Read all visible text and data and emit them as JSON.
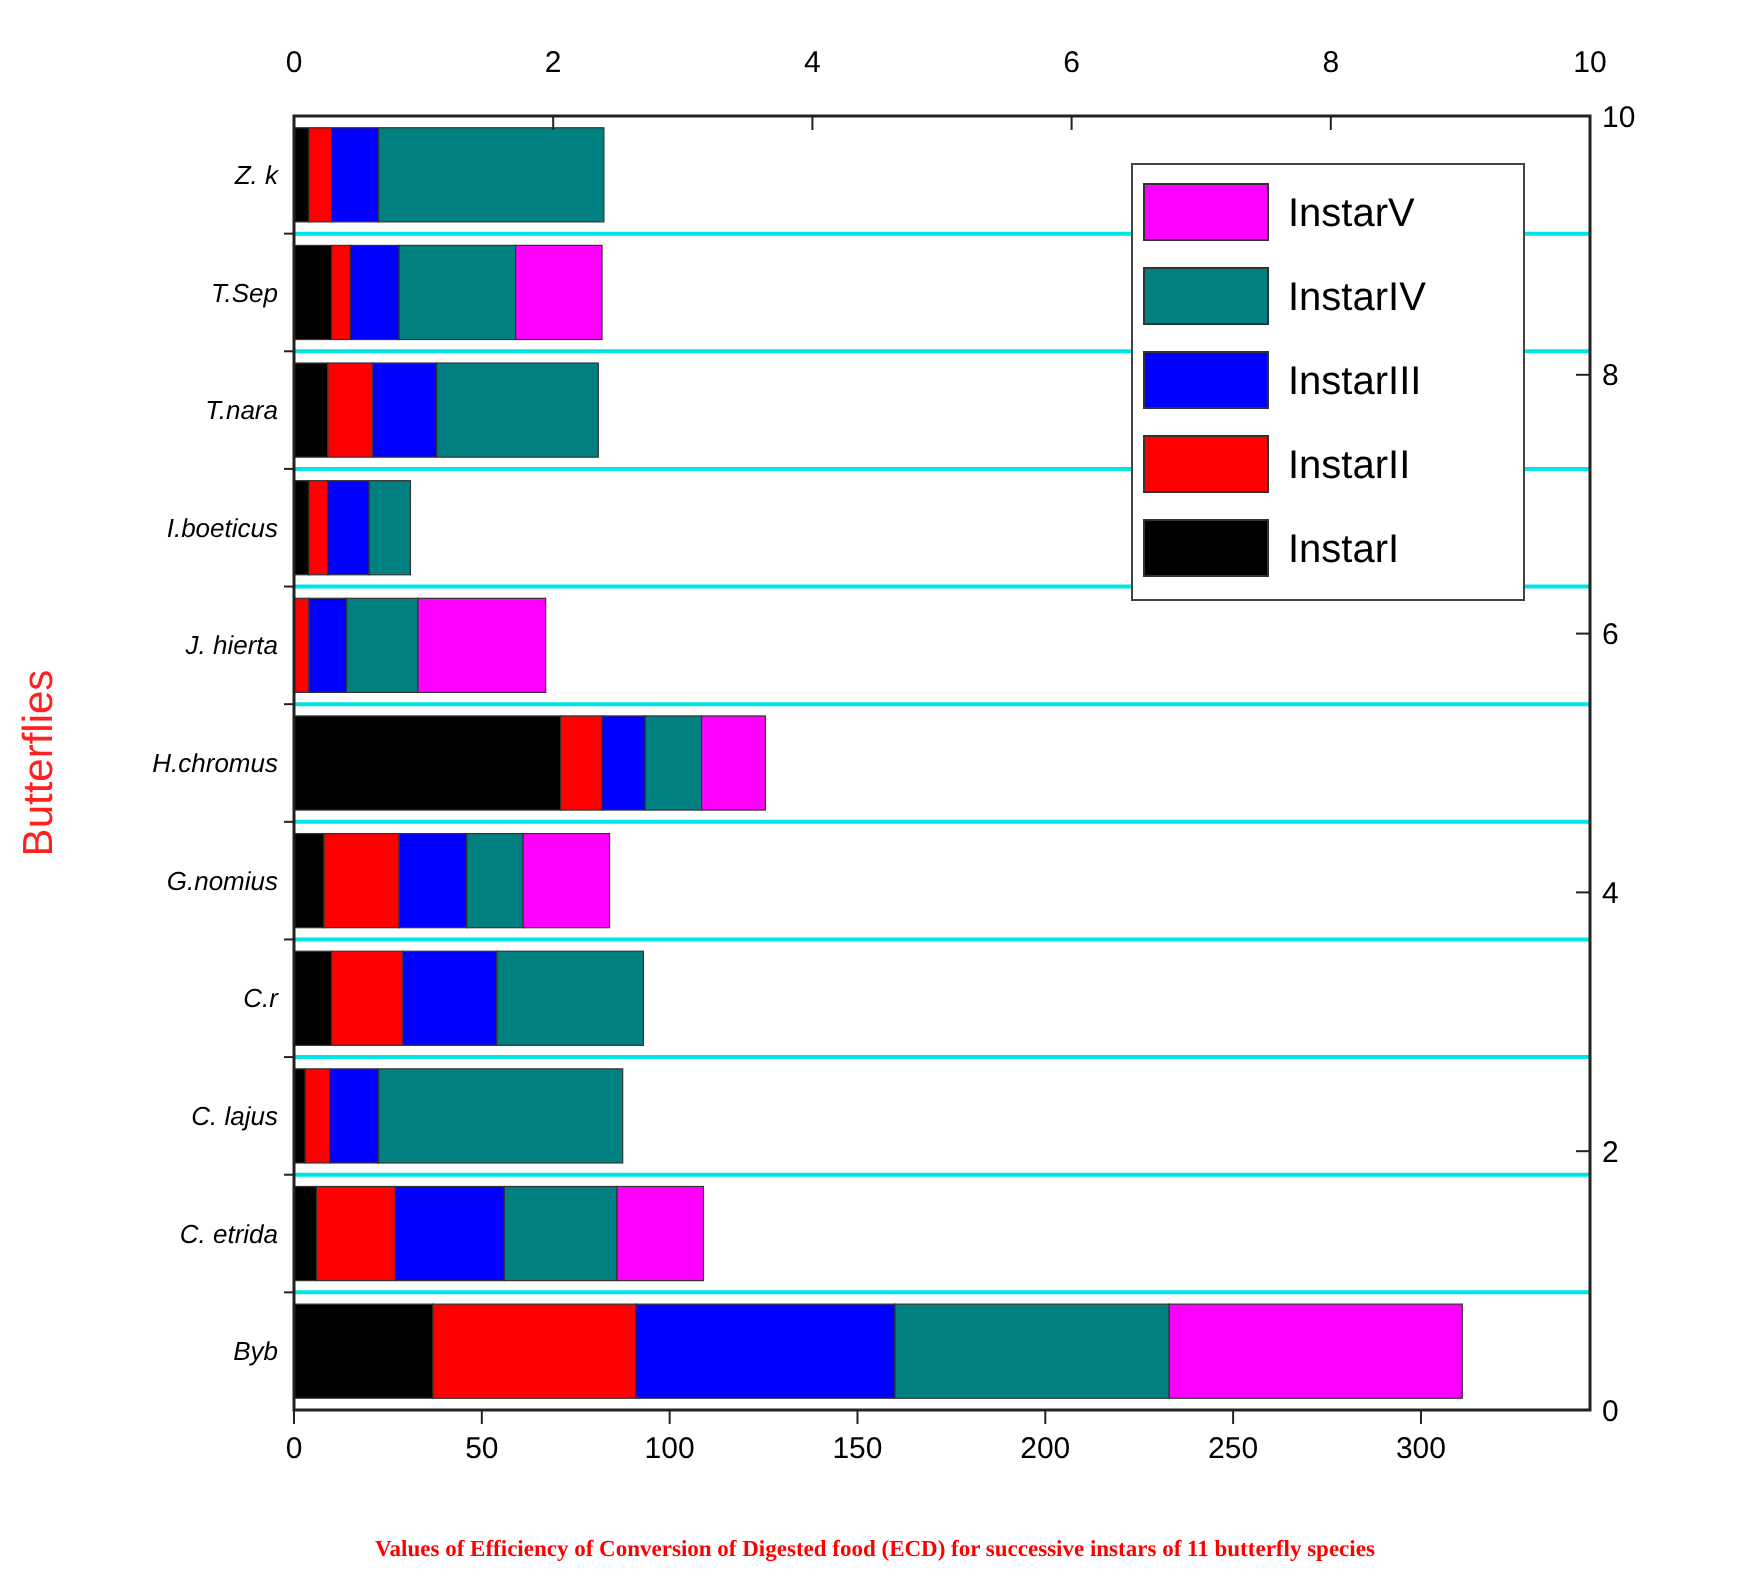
{
  "chart_data": {
    "type": "bar",
    "orientation": "horizontal",
    "stacked": true,
    "title": "Values of Efficiency of Conversion of Digested food (ECD) for successive instars of 11 butterfly species",
    "ylabel": "Butterflies",
    "categories": [
      "Z. k",
      "T.Sep",
      "T.nara",
      "I.boeticus",
      "J. hierta",
      "H.chromus",
      "G.nomius",
      "C.r",
      "C. lajus",
      "C. etrida",
      "Byb"
    ],
    "series": [
      {
        "name": "InstarI",
        "color": "#000000",
        "values": [
          4,
          10,
          9,
          4,
          null,
          71,
          8,
          10,
          3,
          6,
          37
        ]
      },
      {
        "name": "InstarII",
        "color": "#ff0000",
        "values": [
          6,
          5,
          12,
          5,
          4,
          11,
          20,
          19,
          6.5,
          21,
          54
        ]
      },
      {
        "name": "InstarIII",
        "color": "#0000ff",
        "values": [
          12.5,
          13,
          17,
          11,
          10,
          11.5,
          18,
          25,
          13,
          29,
          69
        ]
      },
      {
        "name": "InstarIV",
        "color": "#008080",
        "values": [
          60,
          31,
          43,
          11,
          19,
          15,
          15,
          39,
          65,
          30,
          73
        ]
      },
      {
        "name": "InstarV",
        "color": "#ff00ff",
        "values": [
          null,
          23,
          null,
          null,
          34,
          17,
          23,
          null,
          null,
          23,
          78
        ]
      }
    ],
    "xlim": [
      0,
      345
    ],
    "xticks": [
      0,
      50,
      100,
      150,
      200,
      250,
      300
    ],
    "x2lim": [
      0,
      10
    ],
    "x2ticks": [
      0,
      2,
      4,
      6,
      8,
      10
    ],
    "y2lim": [
      0,
      10
    ],
    "y2ticks": [
      0,
      2,
      4,
      6,
      8,
      10
    ],
    "grid": "y",
    "legend": "top right"
  }
}
